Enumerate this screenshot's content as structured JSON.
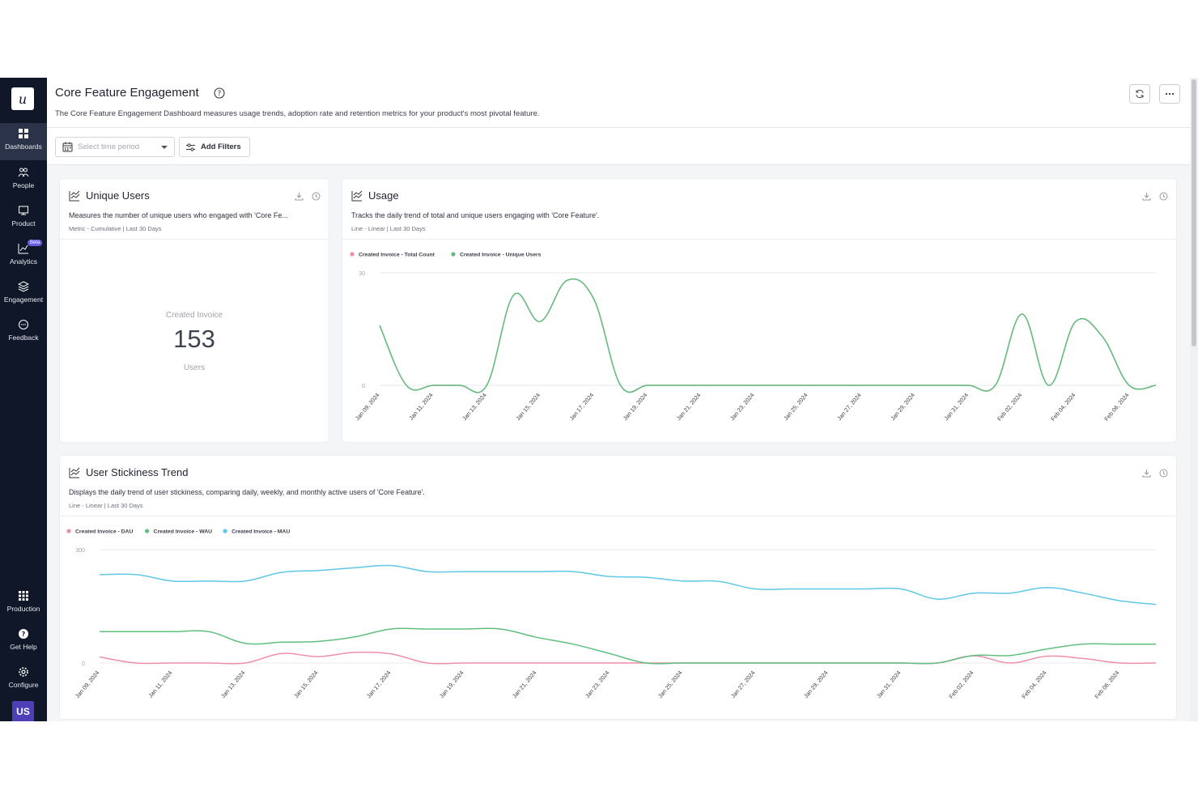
{
  "sidebar": {
    "logo_letter": "u",
    "items": [
      {
        "label": "Dashboards",
        "icon": "grid-icon",
        "active": true
      },
      {
        "label": "People",
        "icon": "people-icon"
      },
      {
        "label": "Product",
        "icon": "product-icon"
      },
      {
        "label": "Analytics",
        "icon": "analytics-icon",
        "badge": "Beta"
      },
      {
        "label": "Engagement",
        "icon": "layers-icon"
      },
      {
        "label": "Feedback",
        "icon": "chat-icon"
      }
    ],
    "bottom_items": [
      {
        "label": "Production",
        "icon": "apps-icon"
      },
      {
        "label": "Get Help",
        "icon": "help-circle-icon"
      },
      {
        "label": "Configure",
        "icon": "gear-icon"
      }
    ],
    "avatar_initials": "US"
  },
  "header": {
    "title": "Core Feature Engagement",
    "description": "The Core Feature Engagement Dashboard measures usage trends, adoption rate and retention metrics for your product's most pivotal feature."
  },
  "filters": {
    "time_placeholder": "Select time period",
    "add_filters_label": "Add Filters"
  },
  "cards": {
    "unique_users": {
      "title": "Unique Users",
      "description": "Measures the number of unique users who engaged with 'Core Fe...",
      "meta": "Metric - Cumulative | Last 30 Days",
      "metric_label": "Created Invoice",
      "metric_value": "153",
      "metric_unit": "Users"
    },
    "usage": {
      "title": "Usage",
      "description": "Tracks the daily trend of total and unique users engaging with 'Core Feature'.",
      "meta": "Line - Linear | Last 30 Days"
    },
    "stickiness": {
      "title": "User Stickiness Trend",
      "description": "Displays the daily trend of user stickiness, comparing daily, weekly, and monthly active users of 'Core Feature'.",
      "meta": "Line - Linear | Last 30 Days"
    }
  },
  "colors": {
    "pink": "#ee8fa8",
    "green": "#5fbf7f",
    "blue": "#5ec8e6"
  },
  "chart_data": [
    {
      "type": "line",
      "ylim": [
        0,
        30
      ],
      "y_ticks": [
        "0",
        "30"
      ],
      "x": [
        "Jan 09, 2024",
        "Jan 10, 2024",
        "Jan 11, 2024",
        "Jan 12, 2024",
        "Jan 13, 2024",
        "Jan 14, 2024",
        "Jan 15, 2024",
        "Jan 16, 2024",
        "Jan 17, 2024",
        "Jan 18, 2024",
        "Jan 19, 2024",
        "Jan 20, 2024",
        "Jan 21, 2024",
        "Jan 22, 2024",
        "Jan 23, 2024",
        "Jan 24, 2024",
        "Jan 25, 2024",
        "Jan 26, 2024",
        "Jan 27, 2024",
        "Jan 28, 2024",
        "Jan 29, 2024",
        "Jan 30, 2024",
        "Jan 31, 2024",
        "Feb 01, 2024",
        "Feb 02, 2024",
        "Feb 03, 2024",
        "Feb 04, 2024",
        "Feb 05, 2024",
        "Feb 06, 2024",
        "Feb 07, 2024"
      ],
      "x_tick_labels": [
        "Jan 09, 2024",
        "Jan 11, 2024",
        "Jan 13, 2024",
        "Jan 15, 2024",
        "Jan 17, 2024",
        "Jan 19, 2024",
        "Jan 21, 2024",
        "Jan 23, 2024",
        "Jan 25, 2024",
        "Jan 27, 2024",
        "Jan 29, 2024",
        "Jan 31, 2024",
        "Feb 02, 2024",
        "Feb 04, 2024",
        "Feb 06, 2024"
      ],
      "series": [
        {
          "name": "Created Invoice - Total Count",
          "color": "#ee8fa8",
          "values": [
            16,
            0,
            0,
            0,
            0,
            24,
            17,
            28,
            23,
            0,
            0,
            0,
            0,
            0,
            0,
            0,
            0,
            0,
            0,
            0,
            0,
            0,
            0,
            0,
            19,
            0,
            17,
            13,
            0,
            0
          ]
        },
        {
          "name": "Created Invoice - Unique Users",
          "color": "#5fbf7f",
          "values": [
            16,
            0,
            0,
            0,
            0,
            24,
            17,
            28,
            23,
            0,
            0,
            0,
            0,
            0,
            0,
            0,
            0,
            0,
            0,
            0,
            0,
            0,
            0,
            0,
            19,
            0,
            17,
            13,
            0,
            0
          ]
        }
      ]
    },
    {
      "type": "line",
      "ylim": [
        0,
        300
      ],
      "y_ticks": [
        "0",
        "300"
      ],
      "x": [
        "Jan 09, 2024",
        "Jan 10, 2024",
        "Jan 11, 2024",
        "Jan 12, 2024",
        "Jan 13, 2024",
        "Jan 14, 2024",
        "Jan 15, 2024",
        "Jan 16, 2024",
        "Jan 17, 2024",
        "Jan 18, 2024",
        "Jan 19, 2024",
        "Jan 20, 2024",
        "Jan 21, 2024",
        "Jan 22, 2024",
        "Jan 23, 2024",
        "Jan 24, 2024",
        "Jan 25, 2024",
        "Jan 26, 2024",
        "Jan 27, 2024",
        "Jan 28, 2024",
        "Jan 29, 2024",
        "Jan 30, 2024",
        "Jan 31, 2024",
        "Feb 01, 2024",
        "Feb 02, 2024",
        "Feb 03, 2024",
        "Feb 04, 2024",
        "Feb 05, 2024",
        "Feb 06, 2024",
        "Feb 07, 2024"
      ],
      "x_tick_labels": [
        "Jan 09, 2024",
        "Jan 11, 2024",
        "Jan 13, 2024",
        "Jan 15, 2024",
        "Jan 17, 2024",
        "Jan 19, 2024",
        "Jan 21, 2024",
        "Jan 23, 2024",
        "Jan 25, 2024",
        "Jan 27, 2024",
        "Jan 29, 2024",
        "Jan 31, 2024",
        "Feb 02, 2024",
        "Feb 04, 2024",
        "Feb 06, 2024"
      ],
      "series": [
        {
          "name": "Created Invoice - DAU",
          "color": "#ee8fa8",
          "values": [
            16,
            0,
            0,
            0,
            0,
            25,
            17,
            28,
            24,
            0,
            0,
            0,
            0,
            0,
            0,
            0,
            0,
            0,
            0,
            0,
            0,
            0,
            0,
            0,
            19,
            0,
            18,
            12,
            0,
            0
          ]
        },
        {
          "name": "Created Invoice - WAU",
          "color": "#5fbf7f",
          "values": [
            83,
            83,
            83,
            83,
            52,
            55,
            57,
            69,
            90,
            90,
            90,
            90,
            68,
            50,
            25,
            0,
            0,
            0,
            0,
            0,
            0,
            0,
            0,
            0,
            20,
            20,
            37,
            50,
            50,
            50
          ]
        },
        {
          "name": "Created Invoice - MAU",
          "color": "#5ec8e6",
          "values": [
            234,
            234,
            217,
            217,
            217,
            240,
            245,
            252,
            258,
            242,
            242,
            242,
            242,
            242,
            229,
            227,
            217,
            216,
            196,
            196,
            196,
            196,
            196,
            169,
            185,
            185,
            200,
            185,
            165,
            155
          ]
        }
      ]
    }
  ]
}
